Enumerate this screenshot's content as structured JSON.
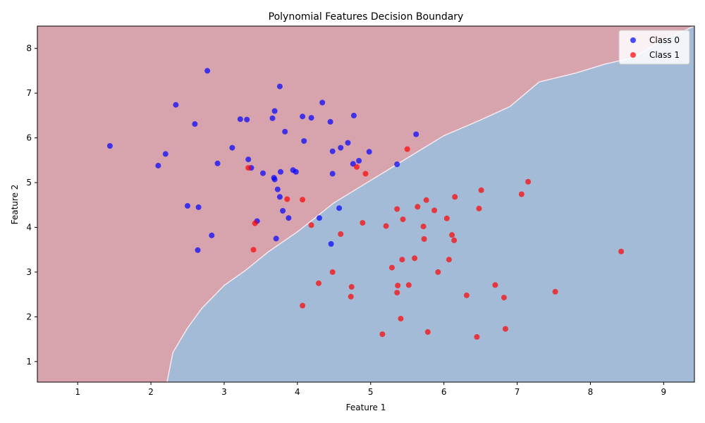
{
  "chart_data": {
    "type": "scatter",
    "title": "Polynomial Features Decision Boundary",
    "xlabel": "Feature 1",
    "ylabel": "Feature 2",
    "xlim": [
      0.45,
      9.42
    ],
    "ylim": [
      0.54,
      8.5
    ],
    "xticks": [
      1,
      2,
      3,
      4,
      5,
      6,
      7,
      8,
      9
    ],
    "yticks": [
      1,
      2,
      3,
      4,
      5,
      6,
      7,
      8
    ],
    "grid": false,
    "legend_position": "top-right",
    "region_colors": {
      "class_0": "#a3bbd6",
      "class_1": "#d7a3ad"
    },
    "boundary": [
      [
        2.22,
        0.54
      ],
      [
        2.3,
        1.2
      ],
      [
        2.5,
        1.75
      ],
      [
        2.7,
        2.2
      ],
      [
        3.0,
        2.7
      ],
      [
        3.3,
        3.05
      ],
      [
        3.6,
        3.45
      ],
      [
        4.0,
        3.9
      ],
      [
        4.5,
        4.55
      ],
      [
        5.0,
        5.05
      ],
      [
        5.5,
        5.55
      ],
      [
        6.0,
        6.05
      ],
      [
        6.5,
        6.4
      ],
      [
        6.9,
        6.7
      ],
      [
        7.3,
        7.25
      ],
      [
        7.8,
        7.45
      ],
      [
        8.2,
        7.65
      ],
      [
        8.6,
        7.8
      ],
      [
        9.0,
        8.2
      ],
      [
        9.42,
        8.5
      ]
    ],
    "series": [
      {
        "name": "Class 0",
        "color": "#0000ff",
        "points": [
          [
            2.77,
            7.5
          ],
          [
            3.76,
            7.15
          ],
          [
            2.34,
            6.74
          ],
          [
            4.34,
            6.79
          ],
          [
            3.69,
            6.6
          ],
          [
            4.07,
            6.48
          ],
          [
            4.19,
            6.45
          ],
          [
            4.77,
            6.5
          ],
          [
            3.22,
            6.42
          ],
          [
            3.31,
            6.41
          ],
          [
            3.66,
            6.44
          ],
          [
            4.45,
            6.36
          ],
          [
            2.6,
            6.31
          ],
          [
            3.83,
            6.14
          ],
          [
            5.62,
            6.08
          ],
          [
            4.09,
            5.93
          ],
          [
            1.44,
            5.82
          ],
          [
            3.11,
            5.78
          ],
          [
            4.69,
            5.89
          ],
          [
            4.59,
            5.78
          ],
          [
            4.48,
            5.7
          ],
          [
            4.98,
            5.69
          ],
          [
            2.2,
            5.64
          ],
          [
            3.33,
            5.52
          ],
          [
            4.84,
            5.49
          ],
          [
            4.76,
            5.42
          ],
          [
            5.36,
            5.41
          ],
          [
            2.1,
            5.38
          ],
          [
            2.91,
            5.43
          ],
          [
            3.37,
            5.33
          ],
          [
            3.77,
            5.24
          ],
          [
            3.94,
            5.28
          ],
          [
            3.98,
            5.24
          ],
          [
            3.53,
            5.21
          ],
          [
            4.48,
            5.2
          ],
          [
            3.68,
            5.11
          ],
          [
            3.69,
            5.07
          ],
          [
            3.73,
            4.85
          ],
          [
            3.76,
            4.68
          ],
          [
            2.5,
            4.48
          ],
          [
            2.65,
            4.45
          ],
          [
            3.8,
            4.37
          ],
          [
            3.88,
            4.21
          ],
          [
            3.45,
            4.14
          ],
          [
            4.3,
            4.21
          ],
          [
            4.57,
            4.43
          ],
          [
            2.83,
            3.82
          ],
          [
            3.71,
            3.75
          ],
          [
            4.46,
            3.63
          ],
          [
            2.64,
            3.49
          ]
        ]
      },
      {
        "name": "Class 1",
        "color": "#ff0000",
        "points": [
          [
            5.5,
            5.75
          ],
          [
            4.81,
            5.35
          ],
          [
            4.93,
            5.2
          ],
          [
            3.33,
            5.33
          ],
          [
            7.15,
            5.02
          ],
          [
            6.51,
            4.83
          ],
          [
            7.06,
            4.74
          ],
          [
            6.15,
            4.68
          ],
          [
            5.76,
            4.61
          ],
          [
            3.86,
            4.63
          ],
          [
            4.07,
            4.62
          ],
          [
            5.64,
            4.46
          ],
          [
            6.48,
            4.42
          ],
          [
            5.36,
            4.41
          ],
          [
            5.87,
            4.38
          ],
          [
            6.04,
            4.2
          ],
          [
            5.44,
            4.18
          ],
          [
            4.89,
            4.1
          ],
          [
            3.42,
            4.09
          ],
          [
            4.19,
            4.05
          ],
          [
            5.21,
            4.03
          ],
          [
            5.72,
            4.02
          ],
          [
            4.59,
            3.85
          ],
          [
            6.11,
            3.83
          ],
          [
            5.73,
            3.74
          ],
          [
            6.14,
            3.71
          ],
          [
            3.4,
            3.5
          ],
          [
            8.42,
            3.46
          ],
          [
            5.6,
            3.31
          ],
          [
            5.43,
            3.28
          ],
          [
            6.07,
            3.28
          ],
          [
            5.29,
            3.1
          ],
          [
            4.48,
            3.0
          ],
          [
            5.92,
            3.0
          ],
          [
            4.29,
            2.75
          ],
          [
            4.74,
            2.67
          ],
          [
            5.37,
            2.7
          ],
          [
            5.52,
            2.71
          ],
          [
            6.7,
            2.71
          ],
          [
            5.36,
            2.54
          ],
          [
            7.52,
            2.56
          ],
          [
            6.31,
            2.48
          ],
          [
            4.73,
            2.45
          ],
          [
            6.82,
            2.43
          ],
          [
            4.07,
            2.25
          ],
          [
            5.41,
            1.96
          ],
          [
            6.84,
            1.73
          ],
          [
            5.78,
            1.66
          ],
          [
            5.16,
            1.61
          ],
          [
            6.45,
            1.55
          ]
        ]
      }
    ]
  }
}
